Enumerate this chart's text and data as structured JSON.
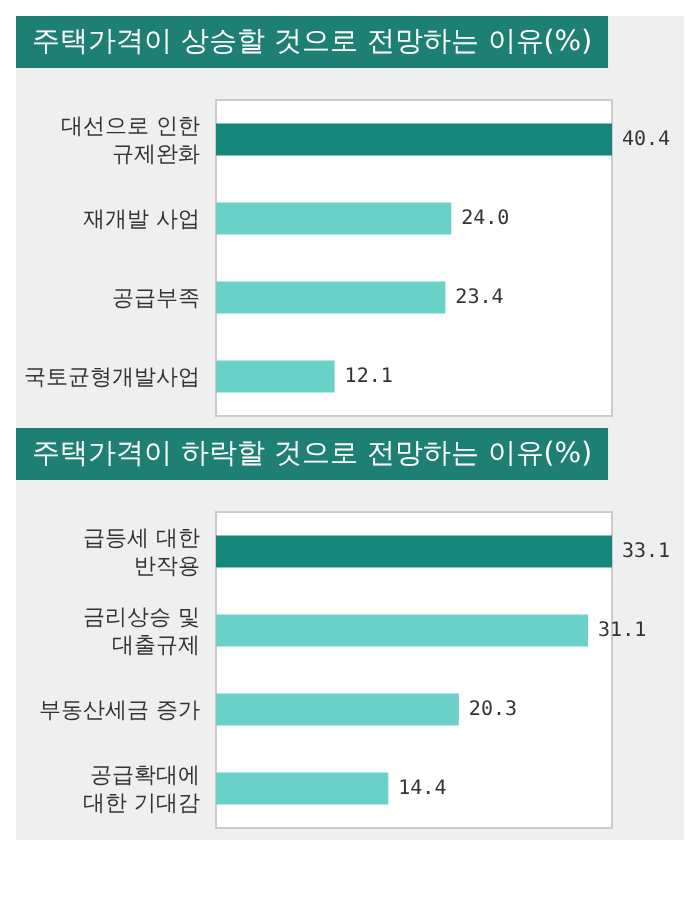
{
  "chart_data": [
    {
      "type": "bar",
      "orientation": "horizontal",
      "title": "주택가격이 상승할 것으로 전망하는 이유(%)",
      "categories": [
        "대선으로 인한\n규제완화",
        "재개발 사업",
        "공급부족",
        "국토균형개발사업"
      ],
      "values": [
        40.4,
        24.0,
        23.4,
        12.1
      ],
      "colors": [
        "#14877a",
        "#6ad1c9",
        "#6ad1c9",
        "#6ad1c9"
      ],
      "value_labels": [
        "40.4",
        "24.0",
        "23.4",
        "12.1"
      ]
    },
    {
      "type": "bar",
      "orientation": "horizontal",
      "title": "주택가격이 하락할 것으로 전망하는 이유(%)",
      "categories": [
        "급등세 대한\n반작용",
        "금리상승 및\n대출규제",
        "부동산세금 증가",
        "공급확대에\n대한 기대감"
      ],
      "values": [
        33.1,
        31.1,
        20.3,
        14.4
      ],
      "colors": [
        "#14877a",
        "#6ad1c9",
        "#6ad1c9",
        "#6ad1c9"
      ],
      "value_labels": [
        "33.1",
        "31.1",
        "20.3",
        "14.4"
      ]
    }
  ]
}
